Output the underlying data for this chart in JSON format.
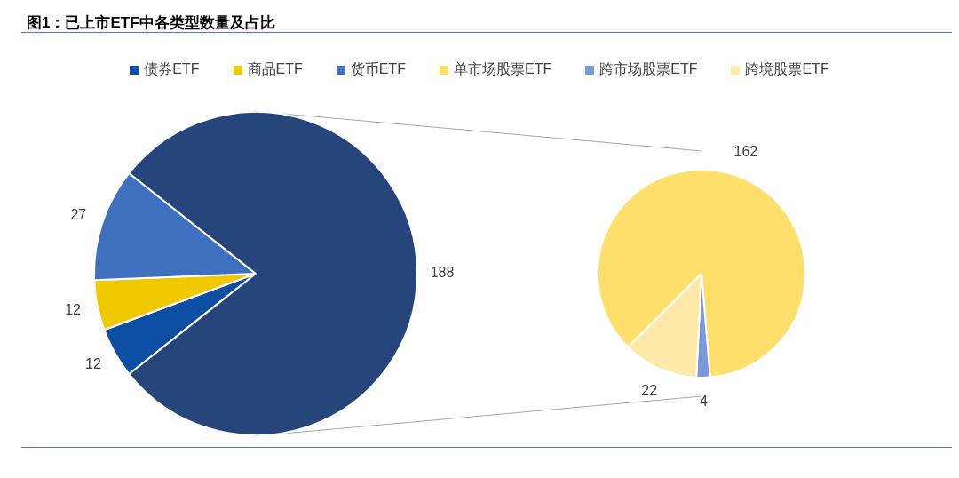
{
  "chart_data": [
    {
      "type": "pie",
      "title": "图1：已上市ETF中各类型数量及占比",
      "legend": "top",
      "data_labels": true,
      "categories": [
        "债券ETF",
        "商品ETF",
        "货币ETF",
        null
      ],
      "values": [
        12,
        12,
        27,
        188
      ],
      "colors": [
        "#0b4ea2",
        "#f0c800",
        "#3f70c0",
        "#26457a"
      ]
    },
    {
      "type": "pie",
      "legend": "top",
      "data_labels": true,
      "categories": [
        "单市场股票ETF",
        "跨市场股票ETF",
        "跨境股票ETF"
      ],
      "values": [
        162,
        4,
        22
      ],
      "colors": [
        "#ffdf6b",
        "#7b9ad8",
        "#feeaa8"
      ]
    }
  ]
}
